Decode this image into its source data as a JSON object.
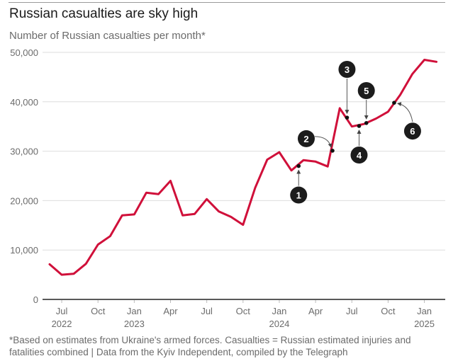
{
  "chart_data": {
    "type": "line",
    "title": "Russian casualties are sky high",
    "subtitle": "Number of Russian casualties per month*",
    "xlabel": "",
    "ylabel": "",
    "ylim": [
      0,
      50000
    ],
    "grid": true,
    "y_ticks": [
      {
        "value": 0,
        "label": "0"
      },
      {
        "value": 10000,
        "label": "10,000"
      },
      {
        "value": 20000,
        "label": "20,000"
      },
      {
        "value": 30000,
        "label": "30,000"
      },
      {
        "value": 40000,
        "label": "40,000"
      },
      {
        "value": 50000,
        "label": "50,000"
      }
    ],
    "x_ticks": [
      {
        "month_index": 1,
        "label": "Jul",
        "year": "2022"
      },
      {
        "month_index": 4,
        "label": "Oct",
        "year": ""
      },
      {
        "month_index": 7,
        "label": "Jan",
        "year": "2023"
      },
      {
        "month_index": 10,
        "label": "Apr",
        "year": ""
      },
      {
        "month_index": 13,
        "label": "Jul",
        "year": ""
      },
      {
        "month_index": 16,
        "label": "Oct",
        "year": ""
      },
      {
        "month_index": 19,
        "label": "Jan",
        "year": "2024"
      },
      {
        "month_index": 22,
        "label": "Apr",
        "year": ""
      },
      {
        "month_index": 25,
        "label": "Jul",
        "year": ""
      },
      {
        "month_index": 28,
        "label": "Oct",
        "year": ""
      },
      {
        "month_index": 31,
        "label": "Jan",
        "year": "2025"
      }
    ],
    "x": [
      "Jun 2022",
      "Jul 2022",
      "Aug 2022",
      "Sep 2022",
      "Oct 2022",
      "Nov 2022",
      "Dec 2022",
      "Jan 2023",
      "Feb 2023",
      "Mar 2023",
      "Apr 2023",
      "May 2023",
      "Jun 2023",
      "Jul 2023",
      "Aug 2023",
      "Sep 2023",
      "Oct 2023",
      "Nov 2023",
      "Dec 2023",
      "Jan 2024",
      "Feb 2024",
      "Mar 2024",
      "Apr 2024",
      "May 2024",
      "Jun 2024",
      "Jul 2024",
      "Aug 2024",
      "Sep 2024",
      "Oct 2024",
      "Nov 2024",
      "Dec 2024",
      "Jan 2025",
      "Feb 2025"
    ],
    "series": [
      {
        "name": "Russian casualties",
        "color": "#d0103a",
        "values": [
          7100,
          5000,
          5200,
          7200,
          11100,
          12800,
          17000,
          17200,
          21600,
          21300,
          24000,
          17000,
          17300,
          20300,
          17800,
          16700,
          15100,
          22600,
          28300,
          29800,
          26100,
          28200,
          27900,
          26900,
          38700,
          35000,
          35500,
          36600,
          38000,
          41400,
          45600,
          48500,
          48100
        ]
      }
    ],
    "annotations": [
      {
        "label": "1",
        "month_index": 20.6,
        "value": 27000,
        "badge_position": "below"
      },
      {
        "label": "2",
        "month_index": 23.4,
        "value": 30100,
        "badge_position": "upper-left"
      },
      {
        "label": "3",
        "month_index": 24.6,
        "value": 36800,
        "badge_position": "above"
      },
      {
        "label": "4",
        "month_index": 25.6,
        "value": 35100,
        "badge_position": "below"
      },
      {
        "label": "5",
        "month_index": 26.2,
        "value": 35700,
        "badge_position": "above"
      },
      {
        "label": "6",
        "month_index": 28.5,
        "value": 39800,
        "badge_position": "lower-right"
      }
    ],
    "footnote": "*Based on estimates from Ukraine's armed forces. Casualties = Russian estimated injuries and fatalities combined  |  Data from the Kyiv Independent, compiled by the Telegraph"
  }
}
